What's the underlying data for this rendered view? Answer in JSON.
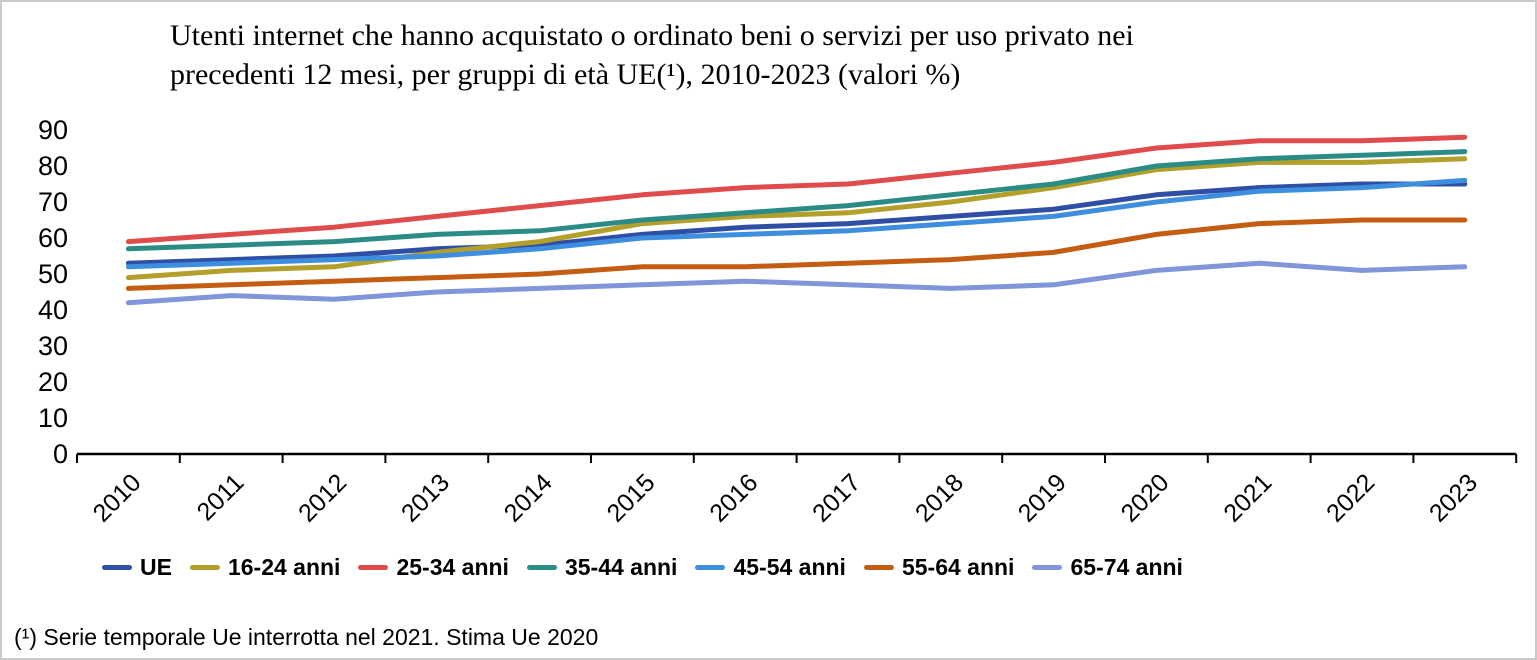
{
  "title_lines": [
    "Utenti internet che hanno acquistato o ordinato beni o servizi per uso privato nei",
    "precedenti 12 mesi, per gruppi di età UE(¹), 2010-2023 (valori %)"
  ],
  "footnote": "(¹) Serie temporale Ue interrotta nel 2021. Stima Ue 2020",
  "chart_data": {
    "type": "line",
    "title": "Utenti internet che hanno acquistato o ordinato beni o servizi per uso privato nei precedenti 12 mesi, per gruppi di età UE(¹), 2010-2023 (valori %)",
    "xlabel": "",
    "ylabel": "",
    "x": [
      "2010",
      "2011",
      "2012",
      "2013",
      "2014",
      "2015",
      "2016",
      "2017",
      "2018",
      "2019",
      "2020",
      "2021",
      "2022",
      "2023"
    ],
    "ylim": [
      0,
      90
    ],
    "yticks": [
      0,
      10,
      20,
      30,
      40,
      50,
      60,
      70,
      80,
      90
    ],
    "grid": false,
    "legend_position": "bottom",
    "series": [
      {
        "name": "UE",
        "color": "#2E4FA5",
        "values": [
          53,
          54,
          55,
          57,
          58,
          61,
          63,
          64,
          66,
          68,
          72,
          74,
          75,
          75
        ]
      },
      {
        "name": "16-24 anni",
        "color": "#B3A02B",
        "values": [
          49,
          51,
          52,
          56,
          59,
          64,
          66,
          67,
          70,
          74,
          79,
          81,
          81,
          82
        ]
      },
      {
        "name": "25-34 anni",
        "color": "#E04C4B",
        "values": [
          59,
          61,
          63,
          66,
          69,
          72,
          74,
          75,
          78,
          81,
          85,
          87,
          87,
          88
        ]
      },
      {
        "name": "35-44 anni",
        "color": "#2B8C85",
        "values": [
          57,
          58,
          59,
          61,
          62,
          65,
          67,
          69,
          72,
          75,
          80,
          82,
          83,
          84
        ]
      },
      {
        "name": "45-54 anni",
        "color": "#3E8EE0",
        "values": [
          52,
          53,
          54,
          55,
          57,
          60,
          61,
          62,
          64,
          66,
          70,
          73,
          74,
          76
        ]
      },
      {
        "name": "55-64 anni",
        "color": "#C45D11",
        "values": [
          46,
          47,
          48,
          49,
          50,
          52,
          52,
          53,
          54,
          56,
          61,
          64,
          65,
          65
        ]
      },
      {
        "name": "65-74 anni",
        "color": "#8095DA",
        "values": [
          42,
          44,
          43,
          45,
          46,
          47,
          48,
          47,
          46,
          47,
          51,
          53,
          51,
          52
        ]
      }
    ]
  }
}
